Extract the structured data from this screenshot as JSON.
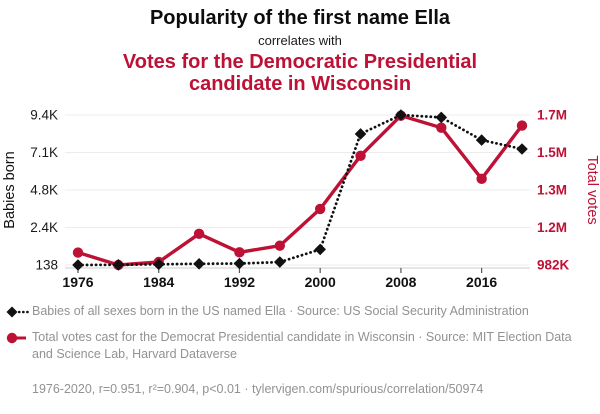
{
  "header": {
    "title": "Popularity of the first name Ella",
    "connector": "correlates with",
    "subtitle": "Votes for the Democratic Presidential candidate in Wisconsin"
  },
  "colors": {
    "accent_red": "#bd1135",
    "series_black": "#111111",
    "gridline": "#ececec",
    "axis_line": "#cccccc",
    "tick_text": "#1a1a1a",
    "muted_text": "#929292"
  },
  "chart_data": {
    "type": "line",
    "x": [
      1976,
      1980,
      1984,
      1988,
      1992,
      1996,
      2000,
      2004,
      2008,
      2012,
      2016,
      2020
    ],
    "series": [
      {
        "name": "Babies of all sexes born in the US named Ella",
        "axis": "left",
        "style": "dotted-diamond",
        "color": "#111111",
        "values": [
          138,
          150,
          180,
          210,
          230,
          320,
          1100,
          8230,
          9400,
          9250,
          7850,
          7300
        ]
      },
      {
        "name": "Total votes cast for the Democrat Presidential candidate in Wisconsin",
        "axis": "right",
        "style": "solid-circle",
        "color": "#bd1135",
        "values": [
          1040000,
          982000,
          996000,
          1127000,
          1041000,
          1072000,
          1243000,
          1490000,
          1677000,
          1621000,
          1383000,
          1631000
        ]
      }
    ],
    "left_axis": {
      "label": "Babies born",
      "min": 138,
      "max": 9400,
      "ticks": [
        "9.4K",
        "7.1K",
        "4.8K",
        "2.4K",
        "138"
      ]
    },
    "right_axis": {
      "label": "Total votes",
      "min": 982000,
      "max": 1680000,
      "ticks": [
        "1.7M",
        "1.5M",
        "1.3M",
        "1.2M",
        "982K"
      ]
    },
    "x_ticks": [
      "1976",
      "1984",
      "1992",
      "2000",
      "2008",
      "2016"
    ],
    "grid": true,
    "legend_position": "bottom"
  },
  "legend": [
    {
      "text": "Babies of all sexes born in the US named Ella · Source: US Social Security Administration"
    },
    {
      "text": "Total votes cast for the Democrat Presidential candidate in Wisconsin · Source: MIT Election Data and Science Lab, Harvard Dataverse"
    }
  ],
  "footer": {
    "text": "1976-2020, r=0.951, r²=0.904, p<0.01 · tylervigen.com/spurious/correlation/50974"
  }
}
